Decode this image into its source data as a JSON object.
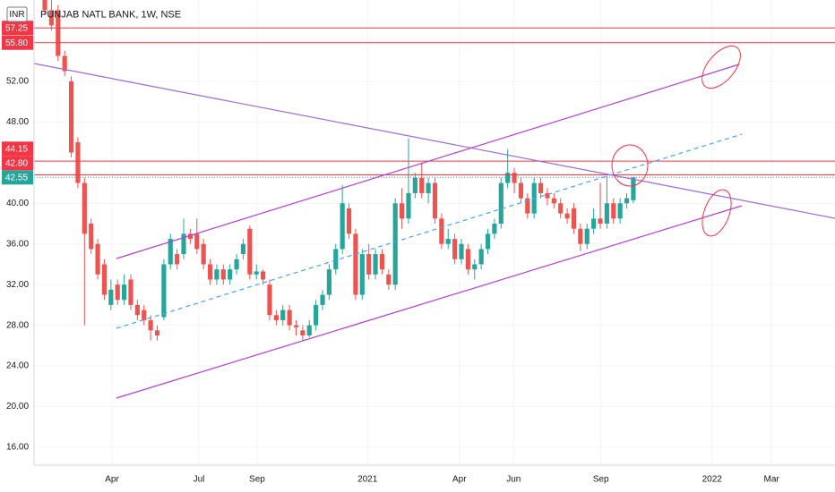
{
  "chart_data": {
    "type": "candlestick",
    "title": "PUNJAB NATL BANK, 1W, NSE",
    "currency": "INR",
    "x": [
      0,
      1,
      2,
      3,
      4,
      5,
      6,
      7,
      8,
      9,
      10,
      11,
      12,
      13,
      14,
      15,
      16,
      17,
      18,
      19,
      20,
      21,
      22,
      23,
      24,
      25,
      26,
      27,
      28,
      29,
      30,
      31,
      32,
      33,
      34,
      35,
      36,
      37,
      38,
      39,
      40,
      41,
      42,
      43,
      44,
      45,
      46,
      47,
      48,
      49,
      50,
      51,
      52,
      53,
      54,
      55,
      56,
      57,
      58,
      59,
      60,
      61,
      62,
      63,
      64,
      65,
      66,
      67,
      68,
      69,
      70,
      71,
      72,
      73,
      74,
      75,
      76,
      77,
      78,
      79,
      80,
      81,
      82,
      83,
      84,
      85,
      86,
      87,
      88,
      89
    ],
    "open": [
      60,
      59,
      59,
      54.5,
      52,
      46,
      42,
      38,
      36,
      34,
      30,
      32,
      30.5,
      32.5,
      30,
      29.5,
      28.5,
      27.5,
      28.8,
      34,
      35,
      35,
      37,
      37,
      36,
      34,
      32.5,
      33.5,
      32.5,
      33.5,
      35,
      37.5,
      33,
      33.3,
      32,
      29,
      28.5,
      29.5,
      28,
      27.5,
      27,
      28,
      30,
      31,
      33.5,
      35.5,
      39.5,
      37,
      31,
      35,
      33,
      35,
      33,
      32,
      40,
      38.5,
      41,
      42.5,
      41,
      42,
      38.5,
      36,
      36.5,
      34.5,
      35.5,
      33.5,
      34,
      35.5,
      37,
      38,
      42,
      43,
      42,
      40.5,
      39,
      42,
      41,
      40.5,
      40,
      39,
      39.5,
      37.5,
      36,
      37.5,
      38.5,
      38,
      40,
      38.5,
      40,
      40.3
    ],
    "high": [
      60.5,
      60,
      59.5,
      55,
      52.5,
      46.5,
      42.5,
      38.5,
      36.5,
      34.5,
      32.5,
      32.5,
      33,
      33,
      30.5,
      30,
      29,
      28,
      34.5,
      37,
      35.5,
      38.5,
      37.5,
      38.5,
      36.5,
      34.5,
      34,
      34,
      34,
      35,
      36.5,
      37.8,
      34,
      33.5,
      32.5,
      29.5,
      30,
      30,
      28.5,
      28,
      28.5,
      30.5,
      31.5,
      34,
      36,
      41.8,
      40,
      37.5,
      35.5,
      36,
      35.5,
      35.5,
      33.5,
      40.5,
      41.5,
      46.4,
      43,
      44,
      42.5,
      42.5,
      39,
      37.5,
      37,
      36.5,
      36,
      34.5,
      36,
      37.5,
      38.5,
      42.5,
      45.3,
      43.5,
      42.5,
      41,
      42.5,
      42.5,
      41.5,
      41,
      40.5,
      39.5,
      40,
      38,
      38,
      39.5,
      42,
      42.7,
      40.5,
      40.5,
      41,
      42.6
    ],
    "low": [
      58.5,
      57,
      54,
      52.5,
      44.5,
      41.5,
      28,
      35,
      32.5,
      30.5,
      29.5,
      30,
      30,
      29.5,
      28.5,
      28,
      26.5,
      26.5,
      28.5,
      33.5,
      33.5,
      34.5,
      36,
      35,
      33.5,
      32,
      32,
      32,
      32,
      33,
      34.5,
      32.5,
      32.5,
      32,
      28.5,
      28,
      28,
      27.5,
      27,
      26.5,
      26.8,
      27.5,
      29.5,
      30.5,
      33,
      35,
      36.5,
      30.5,
      30.5,
      32.5,
      32.5,
      33,
      31.5,
      31.5,
      37.5,
      38,
      40.5,
      40.5,
      40,
      38,
      35.5,
      35.5,
      34,
      34,
      33,
      32.5,
      33.5,
      35,
      36.5,
      37.5,
      41.5,
      41,
      40,
      38.5,
      38.5,
      40.5,
      39.8,
      39.5,
      38.5,
      38,
      37,
      35.3,
      35.5,
      37,
      37.5,
      37.5,
      38,
      38,
      39.5,
      40
    ],
    "close": [
      59,
      57.5,
      54.5,
      53,
      45,
      42,
      37,
      35.5,
      33,
      31,
      31.5,
      30.5,
      32,
      30,
      29,
      28.5,
      27.5,
      27,
      34,
      36.5,
      34,
      37,
      36.5,
      35.5,
      34,
      32.5,
      33.5,
      32.5,
      33.5,
      34.5,
      36,
      33,
      33.3,
      32.5,
      29,
      28.5,
      29.5,
      28,
      27.8,
      27,
      28,
      30,
      31,
      33.5,
      35.5,
      40,
      37,
      31,
      35,
      33,
      35,
      33.5,
      32,
      40,
      38.5,
      41,
      42.5,
      41,
      42,
      38.5,
      36,
      36.5,
      34.5,
      36,
      33.5,
      34,
      35.5,
      37,
      38,
      42,
      43,
      42,
      40.5,
      39,
      42,
      41,
      40.5,
      40,
      39,
      38.5,
      37.5,
      36,
      37.5,
      38.5,
      38,
      40,
      38.5,
      40,
      40.5,
      42.55
    ],
    "xlim": [
      -1.63,
      119.5
    ],
    "xticks": [
      {
        "value": 10.16,
        "label": "Apr"
      },
      {
        "value": 23.3,
        "label": "Jul"
      },
      {
        "value": 32.1,
        "label": "Sep"
      },
      {
        "value": 48.8,
        "label": "2021"
      },
      {
        "value": 62.7,
        "label": "Apr"
      },
      {
        "value": 70.9,
        "label": "Jun"
      },
      {
        "value": 84.1,
        "label": "Sep"
      },
      {
        "value": 100.9,
        "label": "2022"
      },
      {
        "value": 109.9,
        "label": "Mar"
      }
    ],
    "ylim": [
      14.24,
      60.0
    ],
    "yticks": [
      {
        "value": 16,
        "label": "16.00"
      },
      {
        "value": 20,
        "label": "20.00"
      },
      {
        "value": 24,
        "label": "24.00"
      },
      {
        "value": 28,
        "label": "28.00"
      },
      {
        "value": 32,
        "label": "32.00"
      },
      {
        "value": 36,
        "label": "36.00"
      },
      {
        "value": 40,
        "label": "40.00"
      },
      {
        "value": 48,
        "label": "48.00"
      },
      {
        "value": 52,
        "label": "52.00"
      }
    ],
    "levels": [
      {
        "value": 57.25,
        "label": "57.25"
      },
      {
        "value": 55.8,
        "label": "55.80"
      },
      {
        "value": 44.15,
        "label": "44.15"
      },
      {
        "value": 42.8,
        "label": "42.80"
      }
    ],
    "last_price": {
      "value": 42.55,
      "label": "42.55"
    },
    "up_color": "#26a69a",
    "down_color": "#ef5350",
    "level_color": "#f23645"
  }
}
